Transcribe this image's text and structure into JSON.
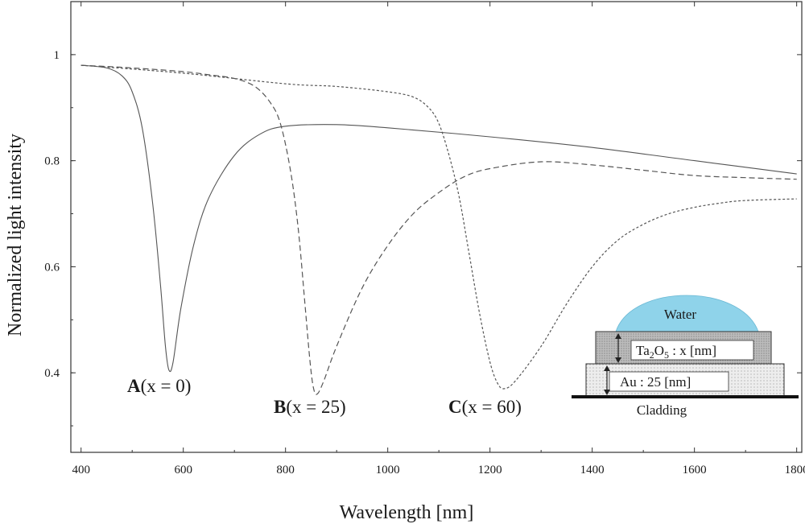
{
  "chart_data": {
    "type": "line",
    "title": "",
    "xlabel": "Wavelength [nm]",
    "ylabel": "Normalized light intensity",
    "xlim": [
      380,
      1810
    ],
    "ylim": [
      0.25,
      1.1
    ],
    "x_ticks": [
      400,
      600,
      800,
      1000,
      1200,
      1400,
      1600,
      1800
    ],
    "y_ticks": [
      0.4,
      0.6,
      0.8,
      1
    ],
    "y_tick_labels": [
      "0.4",
      "0.6",
      "0.8",
      "1"
    ],
    "grid": false,
    "legend": "none",
    "series": [
      {
        "name": "A(x = 0)",
        "label_bold": "A",
        "label_rest": "(x = 0)",
        "line_style": "solid",
        "points": [
          [
            400,
            0.98
          ],
          [
            450,
            0.975
          ],
          [
            480,
            0.96
          ],
          [
            500,
            0.93
          ],
          [
            520,
            0.86
          ],
          [
            540,
            0.72
          ],
          [
            555,
            0.57
          ],
          [
            565,
            0.45
          ],
          [
            572,
            0.405
          ],
          [
            580,
            0.42
          ],
          [
            595,
            0.52
          ],
          [
            620,
            0.64
          ],
          [
            650,
            0.73
          ],
          [
            700,
            0.81
          ],
          [
            750,
            0.85
          ],
          [
            800,
            0.865
          ],
          [
            900,
            0.868
          ],
          [
            1000,
            0.862
          ],
          [
            1200,
            0.845
          ],
          [
            1400,
            0.825
          ],
          [
            1600,
            0.8
          ],
          [
            1800,
            0.775
          ]
        ]
      },
      {
        "name": "B(x = 25)",
        "label_bold": "B",
        "label_rest": "(x = 25)",
        "line_style": "dashed",
        "points": [
          [
            400,
            0.98
          ],
          [
            500,
            0.975
          ],
          [
            600,
            0.968
          ],
          [
            650,
            0.962
          ],
          [
            700,
            0.955
          ],
          [
            740,
            0.94
          ],
          [
            770,
            0.91
          ],
          [
            790,
            0.87
          ],
          [
            810,
            0.78
          ],
          [
            825,
            0.67
          ],
          [
            838,
            0.53
          ],
          [
            848,
            0.42
          ],
          [
            855,
            0.37
          ],
          [
            862,
            0.36
          ],
          [
            875,
            0.385
          ],
          [
            900,
            0.45
          ],
          [
            950,
            0.56
          ],
          [
            1000,
            0.64
          ],
          [
            1050,
            0.7
          ],
          [
            1100,
            0.74
          ],
          [
            1150,
            0.77
          ],
          [
            1200,
            0.785
          ],
          [
            1300,
            0.798
          ],
          [
            1400,
            0.792
          ],
          [
            1500,
            0.782
          ],
          [
            1600,
            0.772
          ],
          [
            1700,
            0.768
          ],
          [
            1800,
            0.765
          ]
        ]
      },
      {
        "name": "C(x = 60)",
        "label_bold": "C",
        "label_rest": "(x = 60)",
        "line_style": "dotted",
        "points": [
          [
            400,
            0.98
          ],
          [
            600,
            0.965
          ],
          [
            800,
            0.945
          ],
          [
            900,
            0.94
          ],
          [
            1000,
            0.93
          ],
          [
            1050,
            0.92
          ],
          [
            1080,
            0.9
          ],
          [
            1100,
            0.87
          ],
          [
            1120,
            0.81
          ],
          [
            1140,
            0.73
          ],
          [
            1160,
            0.62
          ],
          [
            1180,
            0.51
          ],
          [
            1200,
            0.42
          ],
          [
            1215,
            0.38
          ],
          [
            1228,
            0.37
          ],
          [
            1250,
            0.385
          ],
          [
            1300,
            0.45
          ],
          [
            1350,
            0.53
          ],
          [
            1400,
            0.6
          ],
          [
            1450,
            0.65
          ],
          [
            1500,
            0.68
          ],
          [
            1550,
            0.7
          ],
          [
            1600,
            0.712
          ],
          [
            1650,
            0.72
          ],
          [
            1700,
            0.725
          ],
          [
            1800,
            0.728
          ]
        ]
      }
    ]
  },
  "inset": {
    "water_label": "Water",
    "ta2o5_prefix": "Ta",
    "ta2o5_sub1": "2",
    "ta2o5_mid": "O",
    "ta2o5_sub2": "5",
    "ta2o5_suffix": " : x [nm]",
    "au_label": "Au : 25 [nm]",
    "cladding_label": "Cladding",
    "colors": {
      "water": "#8fd3ea",
      "ta2o5_layer": "#bdbdbd",
      "au_layer": "#ececec"
    }
  }
}
